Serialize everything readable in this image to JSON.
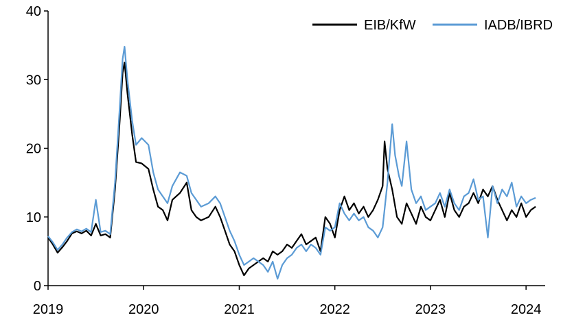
{
  "chart_data": {
    "type": "line",
    "title": "",
    "xlabel": "",
    "ylabel": "",
    "ylim": [
      0,
      40
    ],
    "y_ticks": [
      0,
      10,
      20,
      30,
      40
    ],
    "x_range": [
      2019.0,
      2024.2
    ],
    "x_ticks": [
      2019,
      2020,
      2021,
      2022,
      2023,
      2024
    ],
    "x_tick_labels": [
      "2019",
      "2020",
      "2021",
      "2022",
      "2023",
      "2024"
    ],
    "grid": false,
    "legend_position": "top-right",
    "series": [
      {
        "name": "EIB/KfW",
        "color": "#000000",
        "points": [
          [
            2019.0,
            7.0
          ],
          [
            2019.05,
            6.0
          ],
          [
            2019.1,
            4.8
          ],
          [
            2019.15,
            5.6
          ],
          [
            2019.2,
            6.5
          ],
          [
            2019.25,
            7.6
          ],
          [
            2019.3,
            7.9
          ],
          [
            2019.35,
            7.6
          ],
          [
            2019.4,
            8.0
          ],
          [
            2019.45,
            7.3
          ],
          [
            2019.5,
            9.0
          ],
          [
            2019.55,
            7.3
          ],
          [
            2019.6,
            7.5
          ],
          [
            2019.65,
            7.0
          ],
          [
            2019.7,
            14.0
          ],
          [
            2019.75,
            24.0
          ],
          [
            2019.78,
            31.0
          ],
          [
            2019.8,
            32.5
          ],
          [
            2019.83,
            28.0
          ],
          [
            2019.88,
            22.0
          ],
          [
            2019.92,
            18.0
          ],
          [
            2019.98,
            17.8
          ],
          [
            2020.05,
            17.0
          ],
          [
            2020.1,
            14.0
          ],
          [
            2020.15,
            11.5
          ],
          [
            2020.2,
            11.0
          ],
          [
            2020.25,
            9.5
          ],
          [
            2020.3,
            12.5
          ],
          [
            2020.38,
            13.5
          ],
          [
            2020.45,
            15.0
          ],
          [
            2020.5,
            11.0
          ],
          [
            2020.55,
            10.0
          ],
          [
            2020.6,
            9.5
          ],
          [
            2020.68,
            10.0
          ],
          [
            2020.75,
            11.5
          ],
          [
            2020.8,
            10.0
          ],
          [
            2020.85,
            8.0
          ],
          [
            2020.9,
            6.0
          ],
          [
            2020.95,
            5.0
          ],
          [
            2021.0,
            3.0
          ],
          [
            2021.05,
            1.5
          ],
          [
            2021.1,
            2.5
          ],
          [
            2021.15,
            3.0
          ],
          [
            2021.2,
            3.5
          ],
          [
            2021.25,
            4.0
          ],
          [
            2021.3,
            3.5
          ],
          [
            2021.35,
            5.0
          ],
          [
            2021.4,
            4.5
          ],
          [
            2021.45,
            5.0
          ],
          [
            2021.5,
            6.0
          ],
          [
            2021.55,
            5.5
          ],
          [
            2021.6,
            6.5
          ],
          [
            2021.65,
            7.5
          ],
          [
            2021.7,
            6.0
          ],
          [
            2021.75,
            6.5
          ],
          [
            2021.8,
            7.0
          ],
          [
            2021.85,
            5.0
          ],
          [
            2021.9,
            10.0
          ],
          [
            2021.95,
            9.0
          ],
          [
            2022.0,
            7.0
          ],
          [
            2022.05,
            11.0
          ],
          [
            2022.1,
            13.0
          ],
          [
            2022.15,
            11.0
          ],
          [
            2022.2,
            12.0
          ],
          [
            2022.25,
            10.5
          ],
          [
            2022.3,
            11.5
          ],
          [
            2022.35,
            10.0
          ],
          [
            2022.4,
            11.0
          ],
          [
            2022.45,
            12.5
          ],
          [
            2022.5,
            14.5
          ],
          [
            2022.52,
            21.0
          ],
          [
            2022.55,
            17.0
          ],
          [
            2022.6,
            14.0
          ],
          [
            2022.65,
            10.0
          ],
          [
            2022.7,
            9.0
          ],
          [
            2022.75,
            12.0
          ],
          [
            2022.8,
            10.5
          ],
          [
            2022.85,
            9.0
          ],
          [
            2022.9,
            11.5
          ],
          [
            2022.95,
            10.0
          ],
          [
            2023.0,
            9.5
          ],
          [
            2023.05,
            11.0
          ],
          [
            2023.1,
            12.5
          ],
          [
            2023.15,
            10.0
          ],
          [
            2023.2,
            13.5
          ],
          [
            2023.25,
            11.0
          ],
          [
            2023.3,
            10.0
          ],
          [
            2023.35,
            11.5
          ],
          [
            2023.4,
            12.0
          ],
          [
            2023.45,
            13.5
          ],
          [
            2023.5,
            12.0
          ],
          [
            2023.55,
            14.0
          ],
          [
            2023.6,
            13.0
          ],
          [
            2023.65,
            14.5
          ],
          [
            2023.7,
            12.5
          ],
          [
            2023.75,
            11.0
          ],
          [
            2023.8,
            9.5
          ],
          [
            2023.85,
            11.0
          ],
          [
            2023.9,
            10.0
          ],
          [
            2023.95,
            12.0
          ],
          [
            2024.0,
            10.0
          ],
          [
            2024.05,
            11.0
          ],
          [
            2024.1,
            11.5
          ]
        ]
      },
      {
        "name": "IADB/IBRD",
        "color": "#5b9bd5",
        "points": [
          [
            2019.0,
            7.2
          ],
          [
            2019.05,
            6.3
          ],
          [
            2019.1,
            5.2
          ],
          [
            2019.15,
            6.0
          ],
          [
            2019.2,
            7.0
          ],
          [
            2019.25,
            7.8
          ],
          [
            2019.3,
            8.2
          ],
          [
            2019.35,
            7.9
          ],
          [
            2019.4,
            8.3
          ],
          [
            2019.45,
            7.8
          ],
          [
            2019.5,
            12.5
          ],
          [
            2019.55,
            7.8
          ],
          [
            2019.6,
            8.0
          ],
          [
            2019.65,
            7.5
          ],
          [
            2019.7,
            15.0
          ],
          [
            2019.75,
            26.0
          ],
          [
            2019.78,
            33.0
          ],
          [
            2019.8,
            34.8
          ],
          [
            2019.83,
            30.0
          ],
          [
            2019.88,
            24.0
          ],
          [
            2019.92,
            20.5
          ],
          [
            2019.98,
            21.5
          ],
          [
            2020.05,
            20.5
          ],
          [
            2020.1,
            16.5
          ],
          [
            2020.15,
            14.0
          ],
          [
            2020.2,
            13.0
          ],
          [
            2020.25,
            12.0
          ],
          [
            2020.3,
            14.5
          ],
          [
            2020.38,
            16.5
          ],
          [
            2020.45,
            16.0
          ],
          [
            2020.5,
            13.5
          ],
          [
            2020.55,
            12.5
          ],
          [
            2020.6,
            11.5
          ],
          [
            2020.68,
            12.0
          ],
          [
            2020.75,
            13.0
          ],
          [
            2020.8,
            12.0
          ],
          [
            2020.85,
            10.0
          ],
          [
            2020.9,
            8.0
          ],
          [
            2020.95,
            6.5
          ],
          [
            2021.0,
            4.5
          ],
          [
            2021.05,
            3.0
          ],
          [
            2021.1,
            3.5
          ],
          [
            2021.15,
            4.0
          ],
          [
            2021.2,
            3.5
          ],
          [
            2021.25,
            3.0
          ],
          [
            2021.3,
            2.0
          ],
          [
            2021.35,
            3.5
          ],
          [
            2021.4,
            1.0
          ],
          [
            2021.45,
            3.0
          ],
          [
            2021.5,
            4.0
          ],
          [
            2021.55,
            4.5
          ],
          [
            2021.6,
            5.5
          ],
          [
            2021.65,
            6.0
          ],
          [
            2021.7,
            5.0
          ],
          [
            2021.75,
            6.0
          ],
          [
            2021.8,
            5.5
          ],
          [
            2021.85,
            4.5
          ],
          [
            2021.9,
            8.5
          ],
          [
            2021.95,
            8.0
          ],
          [
            2022.0,
            8.5
          ],
          [
            2022.05,
            12.0
          ],
          [
            2022.1,
            10.5
          ],
          [
            2022.15,
            9.5
          ],
          [
            2022.2,
            10.5
          ],
          [
            2022.25,
            9.5
          ],
          [
            2022.3,
            10.0
          ],
          [
            2022.35,
            8.5
          ],
          [
            2022.4,
            8.0
          ],
          [
            2022.45,
            7.0
          ],
          [
            2022.5,
            8.5
          ],
          [
            2022.55,
            15.0
          ],
          [
            2022.6,
            23.5
          ],
          [
            2022.63,
            19.0
          ],
          [
            2022.67,
            16.0
          ],
          [
            2022.7,
            14.5
          ],
          [
            2022.75,
            21.0
          ],
          [
            2022.8,
            14.0
          ],
          [
            2022.85,
            12.0
          ],
          [
            2022.9,
            13.0
          ],
          [
            2022.95,
            11.0
          ],
          [
            2023.0,
            11.5
          ],
          [
            2023.05,
            12.0
          ],
          [
            2023.1,
            13.5
          ],
          [
            2023.15,
            11.5
          ],
          [
            2023.2,
            14.0
          ],
          [
            2023.25,
            12.0
          ],
          [
            2023.3,
            11.0
          ],
          [
            2023.35,
            13.0
          ],
          [
            2023.4,
            13.5
          ],
          [
            2023.45,
            15.5
          ],
          [
            2023.5,
            12.5
          ],
          [
            2023.55,
            13.0
          ],
          [
            2023.6,
            7.0
          ],
          [
            2023.65,
            14.5
          ],
          [
            2023.7,
            12.0
          ],
          [
            2023.75,
            14.0
          ],
          [
            2023.8,
            13.0
          ],
          [
            2023.85,
            15.0
          ],
          [
            2023.9,
            11.5
          ],
          [
            2023.95,
            13.0
          ],
          [
            2024.0,
            12.0
          ],
          [
            2024.05,
            12.5
          ],
          [
            2024.1,
            12.8
          ]
        ]
      }
    ]
  }
}
